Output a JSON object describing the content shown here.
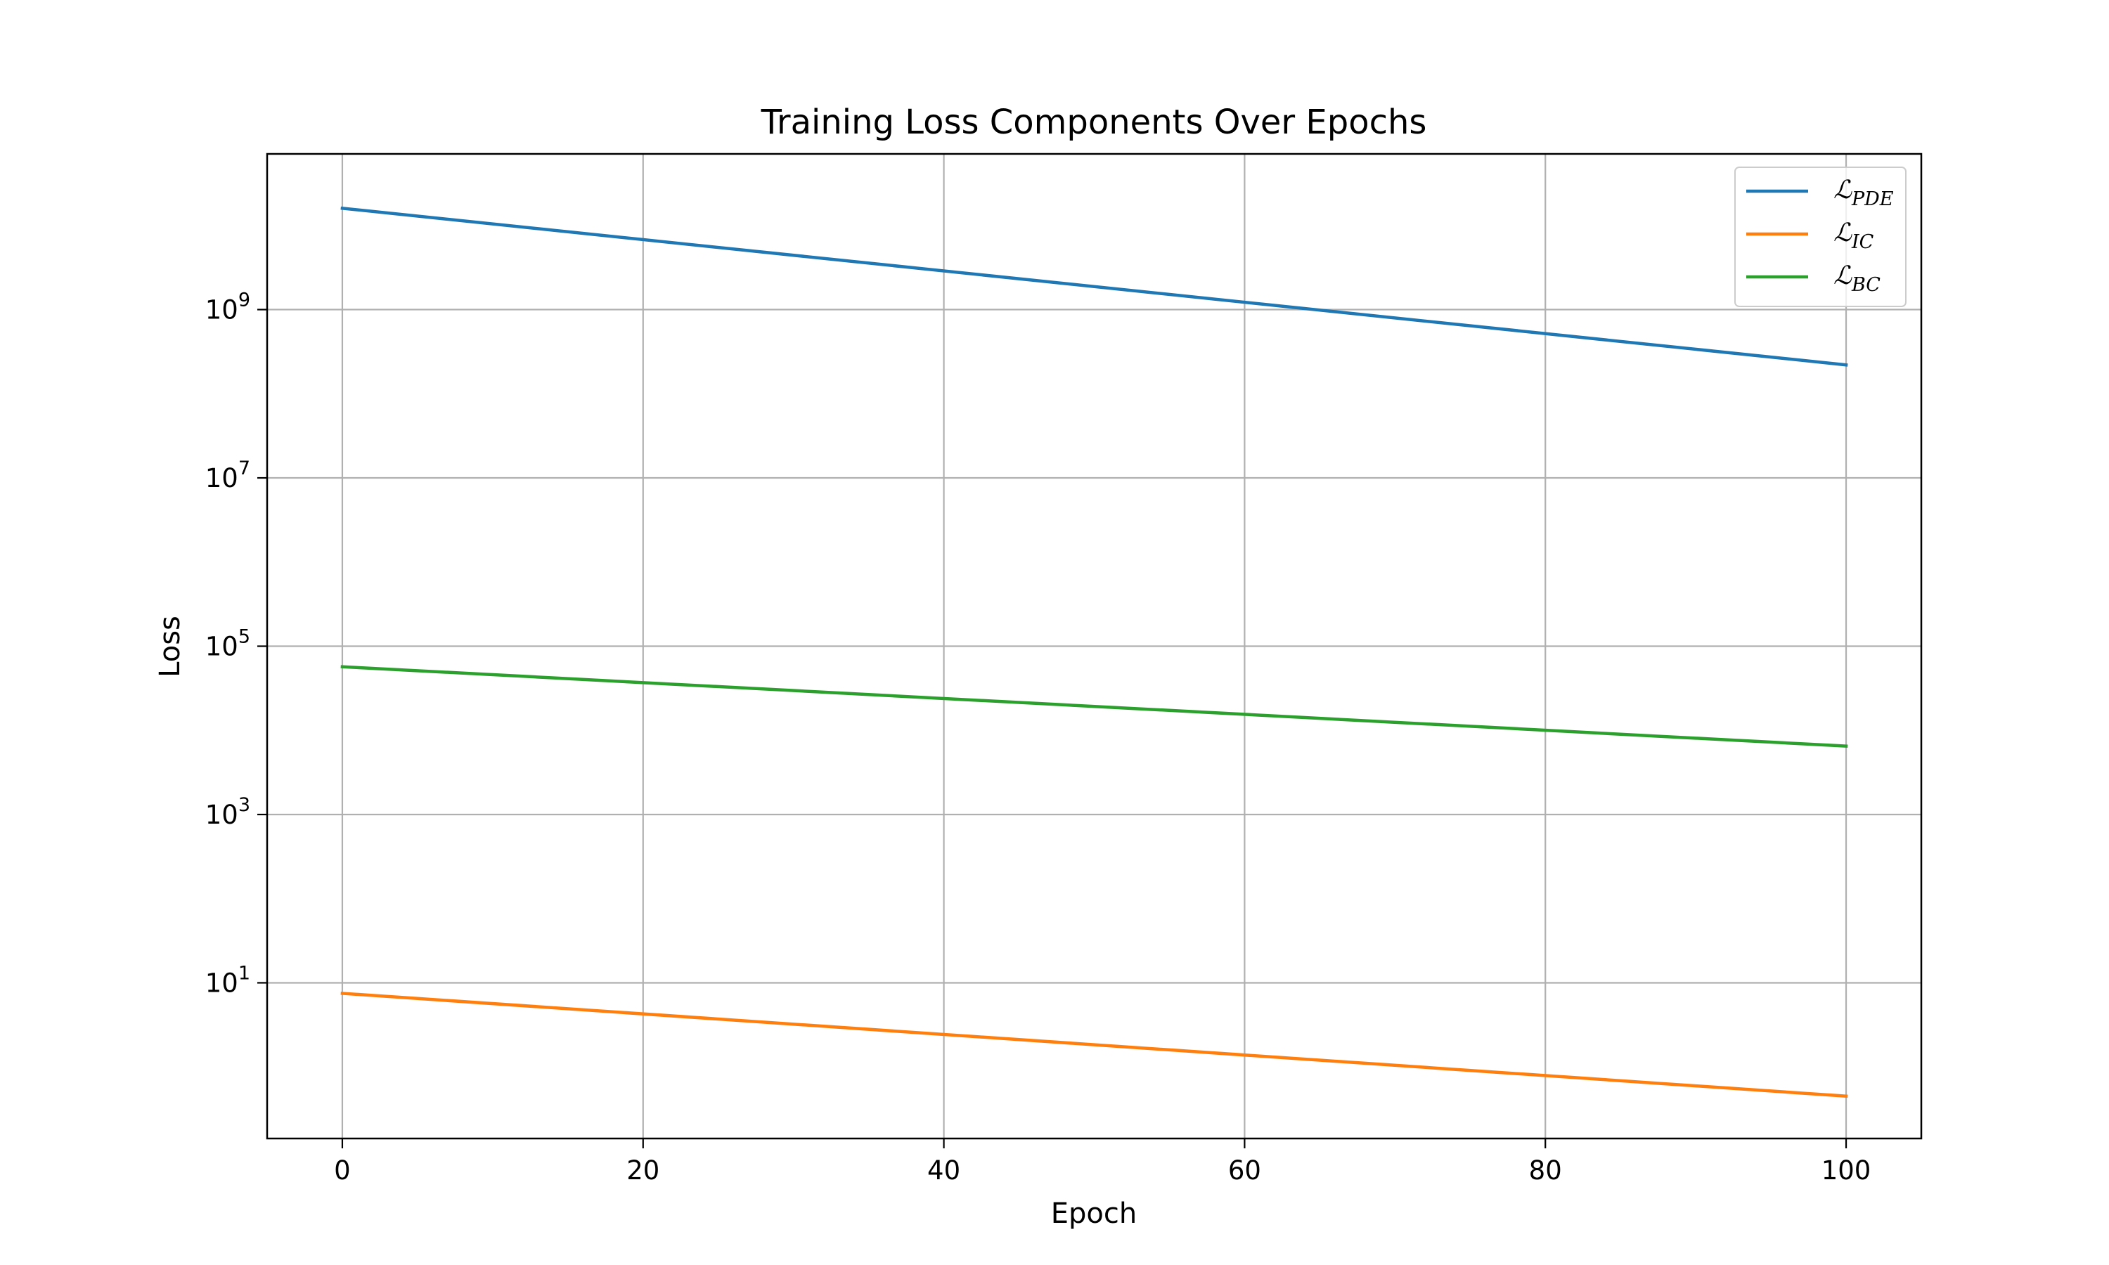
{
  "chart_data": {
    "type": "line",
    "title": "Training Loss Components Over Epochs",
    "xlabel": "Epoch",
    "ylabel": "Loss",
    "xlim": [
      -5,
      105
    ],
    "ylim_log10": [
      -0.85,
      10.85
    ],
    "y_scale": "log",
    "grid": true,
    "legend_position": "top-right",
    "x_ticks": [
      0,
      20,
      40,
      60,
      80,
      100
    ],
    "y_ticks": [
      {
        "value": 10,
        "base": "10",
        "exp": "1"
      },
      {
        "value": 1000,
        "base": "10",
        "exp": "3"
      },
      {
        "value": 100000,
        "base": "10",
        "exp": "5"
      },
      {
        "value": 10000000,
        "base": "10",
        "exp": "7"
      },
      {
        "value": 1000000000,
        "base": "10",
        "exp": "9"
      }
    ],
    "x": [
      0,
      100
    ],
    "series": [
      {
        "name": "ℒ",
        "subscript": "PDE",
        "color": "#1f77b4",
        "values": [
          16000000000,
          220000000
        ]
      },
      {
        "name": "ℒ",
        "subscript": "IC",
        "color": "#ff7f0e",
        "values": [
          7.5,
          0.45
        ]
      },
      {
        "name": "ℒ",
        "subscript": "BC",
        "color": "#2ca02c",
        "values": [
          57000,
          6500
        ]
      }
    ]
  }
}
